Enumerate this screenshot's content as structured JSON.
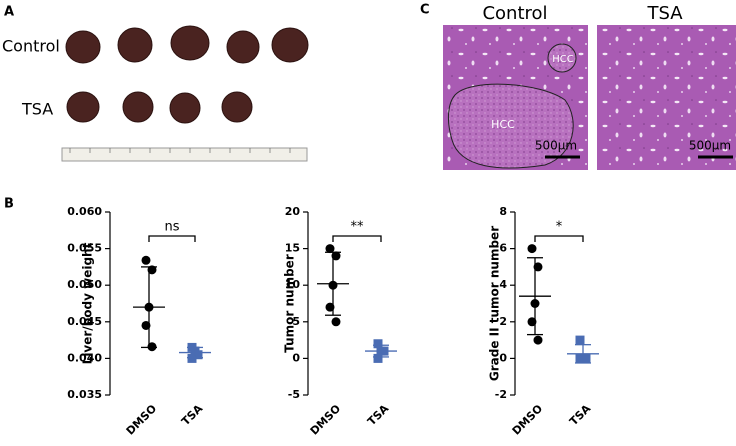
{
  "panels": {
    "a": {
      "label": "A",
      "control": "Control",
      "tsa": "TSA"
    },
    "b": {
      "label": "B"
    },
    "c": {
      "label": "C",
      "control": "Control",
      "tsa": "TSA",
      "hcc_large": "HCC",
      "hcc_small": "HCC",
      "scale_left": "500μm",
      "scale_right": "500μm"
    }
  },
  "chart_data": [
    {
      "type": "dot",
      "y_label": "Liver/body weight",
      "categories": [
        "DMSO",
        "TSA"
      ],
      "annotation": "ns",
      "ylim": [
        0.035,
        0.06
      ],
      "yticks": [
        0.035,
        {
          "value": 0.04,
          "label": "0.040"
        },
        0.045,
        {
          "value": 0.05,
          "label": "0.050"
        },
        0.055,
        {
          "value": 0.06,
          "label": "0.060"
        }
      ],
      "groups": [
        {
          "color": "#000000",
          "marker": "circle",
          "values": [
            0.0534,
            0.0521,
            0.047,
            0.0445,
            0.0416
          ],
          "mean": 0.047,
          "sd": 0.0055
        },
        {
          "color": "#4a6cb3",
          "marker": "square",
          "values": [
            0.0415,
            0.0405,
            0.041,
            0.04
          ],
          "mean": 0.0408,
          "sd": 0.0007
        }
      ]
    },
    {
      "type": "dot",
      "y_label": "Tumor number",
      "categories": [
        "DMSO",
        "TSA"
      ],
      "annotation": "**",
      "ylim": [
        -5,
        20
      ],
      "yticks": [
        -5,
        0,
        5,
        10,
        15,
        20
      ],
      "groups": [
        {
          "color": "#000000",
          "marker": "circle",
          "values": [
            15,
            14,
            10,
            7,
            5
          ],
          "mean": 10.2,
          "sd": 4.3
        },
        {
          "color": "#4a6cb3",
          "marker": "square",
          "values": [
            2,
            1,
            1,
            0
          ],
          "mean": 1,
          "sd": 0.8
        }
      ]
    },
    {
      "type": "dot",
      "y_label": "Grade II tumor number",
      "categories": [
        "DMSO",
        "TSA"
      ],
      "annotation": "*",
      "ylim": [
        -2,
        8
      ],
      "yticks": [
        -2,
        0,
        2,
        4,
        6,
        8
      ],
      "groups": [
        {
          "color": "#000000",
          "marker": "circle",
          "values": [
            6,
            5,
            3,
            2,
            1
          ],
          "mean": 3.4,
          "sd": 2.1
        },
        {
          "color": "#4a6cb3",
          "marker": "square",
          "values": [
            1,
            0,
            0,
            0
          ],
          "mean": 0.25,
          "sd": 0.5
        }
      ]
    }
  ]
}
